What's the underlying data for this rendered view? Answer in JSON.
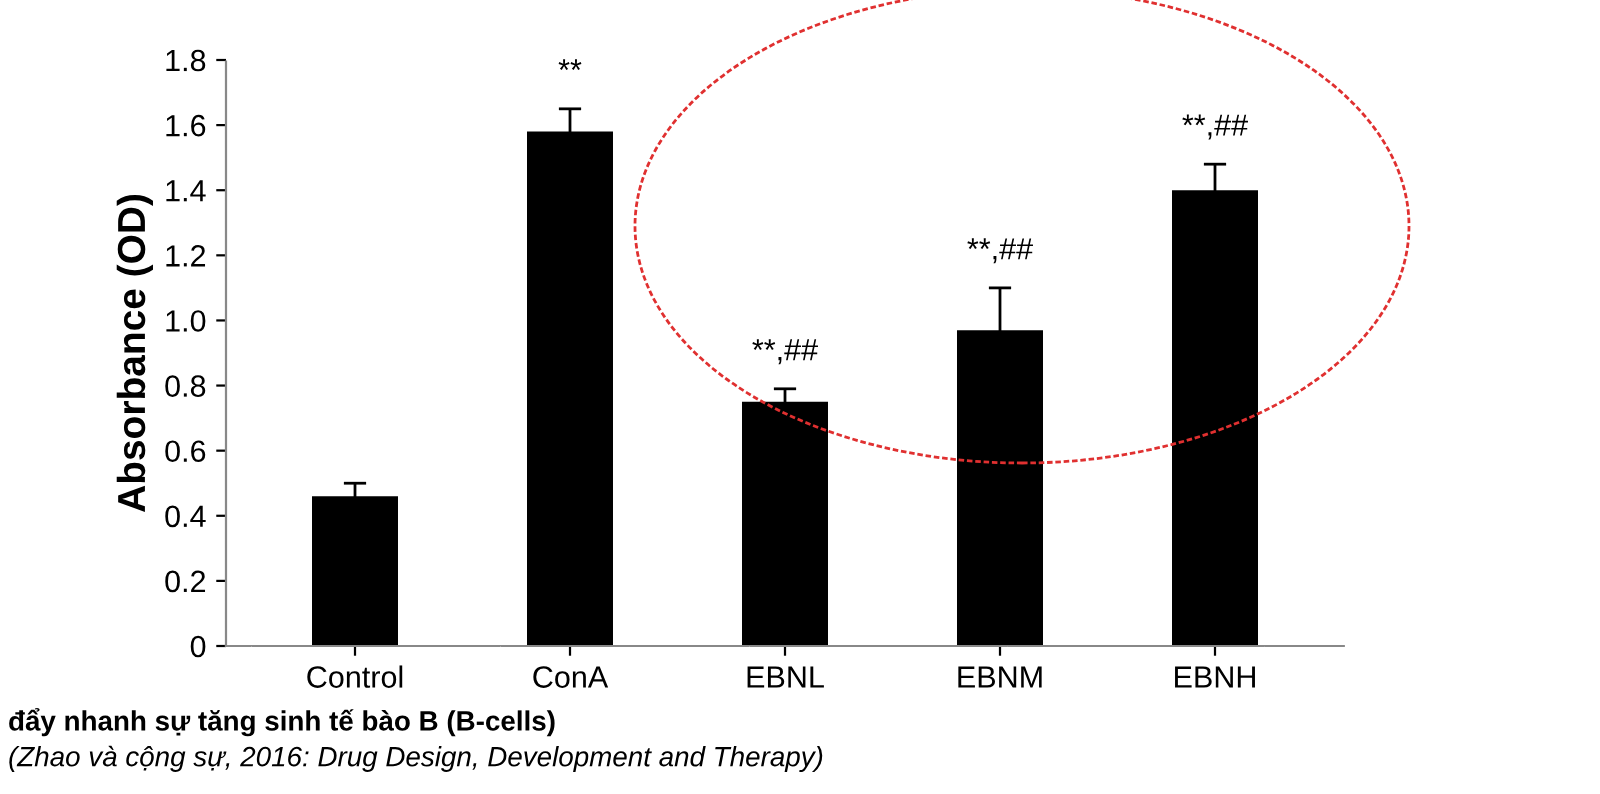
{
  "chart_data": {
    "type": "bar",
    "ylabel": "Absorbance (OD)",
    "categories": [
      "Control",
      "ConA",
      "EBNL",
      "EBNM",
      "EBNH"
    ],
    "values": [
      0.46,
      1.58,
      0.75,
      0.97,
      1.4
    ],
    "errors": [
      0.04,
      0.07,
      0.04,
      0.13,
      0.08
    ],
    "color": "#000000",
    "ylim": [
      0,
      1.8
    ],
    "yticks": [
      0,
      0.2,
      0.4,
      0.6,
      0.8,
      {
        "value": 1,
        "label": "1.0"
      },
      1.2,
      1.4,
      1.6,
      1.8
    ],
    "grid": false,
    "annotations": [
      "**",
      "**,##",
      "**,##",
      "**,##",
      "đẩy nhanh sự tăng sinh tế bào B (B-cells)",
      "(Zhao và cộng sự, 2016: Drug Design, Development and Therapy)"
    ]
  }
}
